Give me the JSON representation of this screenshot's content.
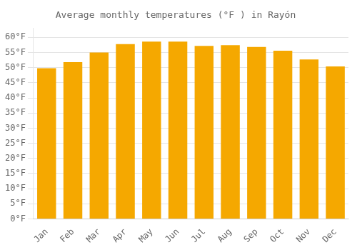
{
  "chart_data": {
    "type": "bar",
    "title": "Average monthly temperatures (°F ) in Rayón",
    "categories": [
      "Jan",
      "Feb",
      "Mar",
      "Apr",
      "May",
      "Jun",
      "Jul",
      "Aug",
      "Sep",
      "Oct",
      "Nov",
      "Dec"
    ],
    "values": [
      49.8,
      51.8,
      55.0,
      57.8,
      58.6,
      58.6,
      57.2,
      57.4,
      56.8,
      55.6,
      52.7,
      50.4
    ],
    "color": "#F5A800",
    "ylim": [
      0,
      63
    ],
    "yticks": [
      {
        "value": 0,
        "label": "0°F"
      },
      {
        "value": 5,
        "label": "5°F"
      },
      {
        "value": 10,
        "label": "10°F"
      },
      {
        "value": 15,
        "label": "15°F"
      },
      {
        "value": 20,
        "label": "20°F"
      },
      {
        "value": 25,
        "label": "25°F"
      },
      {
        "value": 30,
        "label": "30°F"
      },
      {
        "value": 35,
        "label": "35°F"
      },
      {
        "value": 40,
        "label": "40°F"
      },
      {
        "value": 45,
        "label": "45°F"
      },
      {
        "value": 50,
        "label": "50°F"
      },
      {
        "value": 55,
        "label": "55°F"
      },
      {
        "value": 60,
        "label": "60°F"
      }
    ],
    "grid": true
  }
}
